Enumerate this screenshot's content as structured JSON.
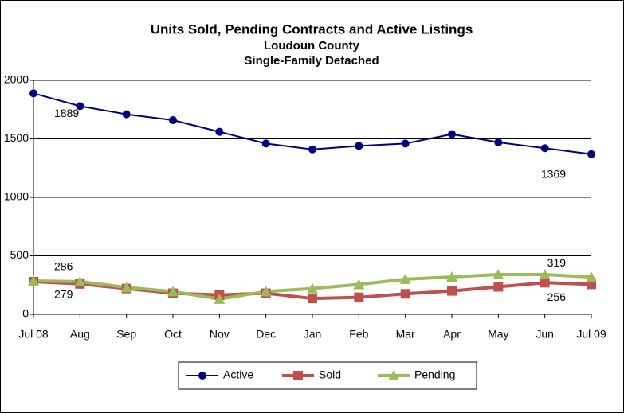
{
  "chart_data": {
    "type": "line",
    "title": "Units Sold, Pending Contracts and Active Listings",
    "subtitle": [
      "Loudoun County",
      "Single-Family Detached"
    ],
    "categories": [
      "Jul 08",
      "Aug",
      "Sep",
      "Oct",
      "Nov",
      "Dec",
      "Jan",
      "Feb",
      "Mar",
      "Apr",
      "May",
      "Jun",
      "Jul 09"
    ],
    "series": [
      {
        "name": "Active",
        "color": "#000080",
        "marker": "circle",
        "values": [
          1889,
          1780,
          1710,
          1660,
          1560,
          1460,
          1410,
          1440,
          1460,
          1540,
          1470,
          1420,
          1369
        ]
      },
      {
        "name": "Sold",
        "color": "#c0504d",
        "marker": "square",
        "values": [
          279,
          260,
          220,
          180,
          165,
          180,
          135,
          145,
          175,
          200,
          235,
          270,
          256
        ]
      },
      {
        "name": "Pending",
        "color": "#9bbb59",
        "marker": "triangle",
        "values": [
          286,
          280,
          230,
          195,
          130,
          195,
          220,
          255,
          300,
          320,
          340,
          340,
          319
        ]
      }
    ],
    "ylim": [
      0,
      2000
    ],
    "yticks": [
      0,
      500,
      1000,
      1500,
      2000
    ],
    "grid": true,
    "legend": "bottom"
  }
}
